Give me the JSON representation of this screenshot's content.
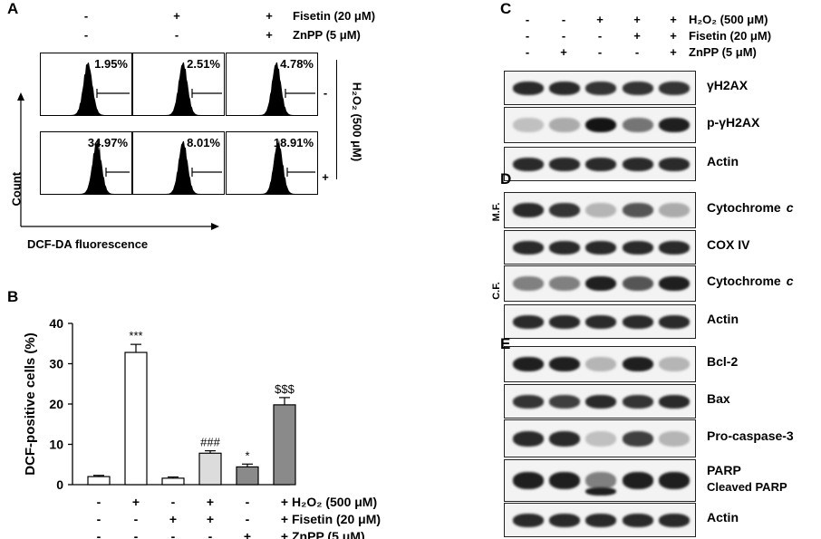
{
  "panel_a": {
    "label": "A",
    "header_rows": [
      {
        "signs": [
          "-",
          "+",
          "+"
        ],
        "text": "Fisetin (20 μM)"
      },
      {
        "signs": [
          "-",
          "-",
          "+"
        ],
        "text": "ZnPP (5 μM)"
      }
    ],
    "percent_rows": [
      [
        "1.95%",
        "2.51%",
        "4.78%"
      ],
      [
        "34.97%",
        "8.01%",
        "18.91%"
      ]
    ],
    "h2o2_label": "H₂O₂ (500 μM)",
    "h2o2_signs": [
      "-",
      "+"
    ],
    "y_axis": "Count",
    "x_axis": "DCF-DA fluorescence"
  },
  "panel_b": {
    "label": "B",
    "condition_rows": [
      {
        "signs": [
          "-",
          "+",
          "-",
          "+",
          "-",
          "+"
        ],
        "text": "H₂O₂ (500 μM)"
      },
      {
        "signs": [
          "-",
          "-",
          "+",
          "+",
          "-",
          "+"
        ],
        "text": "Fisetin (20 μM)"
      },
      {
        "signs": [
          "-",
          "-",
          "-",
          "-",
          "+",
          "+"
        ],
        "text": "ZnPP (5 μM)"
      }
    ]
  },
  "chart_data": {
    "type": "bar",
    "ylabel": "DCF-positive cells (%)",
    "ylim": [
      0,
      40
    ],
    "yticks": [
      "0",
      "10",
      "20",
      "30",
      "40"
    ],
    "values": [
      2.0,
      32.8,
      1.6,
      7.8,
      4.4,
      19.8
    ],
    "errors": [
      0.3,
      2.0,
      0.3,
      0.6,
      0.7,
      1.8
    ],
    "bar_colors": [
      "#ffffff",
      "#ffffff",
      "#ffffff",
      "#dcdcdc",
      "#8a8a8a",
      "#8a8a8a"
    ],
    "annotations": [
      "",
      "***",
      "",
      "###",
      "*",
      "$$$"
    ]
  },
  "panel_c": {
    "label": "C",
    "condition_rows": [
      {
        "signs": [
          "-",
          "-",
          "+",
          "+",
          "+"
        ],
        "text": "H₂O₂ (500 μM)"
      },
      {
        "signs": [
          "-",
          "-",
          "-",
          "+",
          "+"
        ],
        "text": "Fisetin (20 μM)"
      },
      {
        "signs": [
          "-",
          "+",
          "-",
          "-",
          "+"
        ],
        "text": "ZnPP (5 μM)"
      }
    ],
    "blots": [
      {
        "label": "γH2AX",
        "intensity": [
          0.9,
          0.9,
          0.85,
          0.85,
          0.85
        ]
      },
      {
        "label": "p-γH2AX",
        "intensity": [
          0.2,
          0.3,
          1.0,
          0.55,
          0.95
        ]
      },
      {
        "label": "Actin",
        "intensity": [
          0.9,
          0.9,
          0.9,
          0.9,
          0.9
        ]
      }
    ]
  },
  "panel_d": {
    "label": "D",
    "mf_label": "M.F.",
    "cf_label": "C.F.",
    "blots": [
      {
        "label": "Cytochrome",
        "italic": "c",
        "intensity": [
          0.9,
          0.85,
          0.25,
          0.7,
          0.3
        ]
      },
      {
        "label": "COX IV",
        "italic": "",
        "intensity": [
          0.9,
          0.9,
          0.9,
          0.9,
          0.9
        ]
      },
      {
        "label": "Cytochrome",
        "italic": "c",
        "intensity": [
          0.5,
          0.5,
          0.95,
          0.7,
          0.95
        ]
      },
      {
        "label": "Actin",
        "italic": "",
        "intensity": [
          0.9,
          0.9,
          0.9,
          0.9,
          0.9
        ]
      }
    ]
  },
  "panel_e": {
    "label": "E",
    "blots": [
      {
        "label": "Bcl-2",
        "intensity": [
          0.95,
          0.95,
          0.25,
          0.95,
          0.25
        ]
      },
      {
        "label": "Bax",
        "intensity": [
          0.85,
          0.8,
          0.9,
          0.85,
          0.9
        ]
      },
      {
        "label": "Pro-caspase-3",
        "intensity": [
          0.9,
          0.9,
          0.2,
          0.8,
          0.25
        ]
      },
      {
        "label": "PARP",
        "intensity": [
          0.95,
          0.95,
          0.5,
          0.95,
          0.95
        ],
        "second_label": "Cleaved PARP"
      },
      {
        "label": "Actin",
        "intensity": [
          0.9,
          0.9,
          0.9,
          0.9,
          0.9
        ]
      }
    ]
  }
}
